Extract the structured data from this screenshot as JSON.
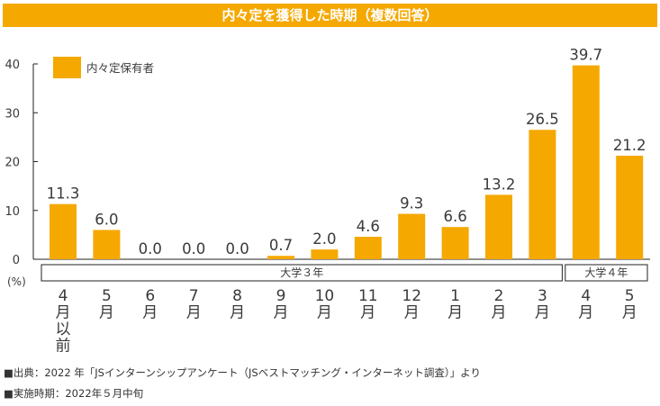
{
  "title": "内々定を獲得した時期（複数回答）",
  "chart_data": {
    "type": "bar",
    "title": "内々定を獲得した時期（複数回答）",
    "ylabel": "(%)",
    "ylim": [
      0,
      40
    ],
    "yticks": [
      0,
      10,
      20,
      30,
      40
    ],
    "legend": {
      "label": "内々定保有者",
      "position": "top-left"
    },
    "bar_color": "#f5a800",
    "categories": [
      [
        "4",
        "月",
        "以",
        "前"
      ],
      [
        "5",
        "月"
      ],
      [
        "6",
        "月"
      ],
      [
        "7",
        "月"
      ],
      [
        "8",
        "月"
      ],
      [
        "9",
        "月"
      ],
      [
        "10",
        "月"
      ],
      [
        "11",
        "月"
      ],
      [
        "12",
        "月"
      ],
      [
        "1",
        "月"
      ],
      [
        "2",
        "月"
      ],
      [
        "3",
        "月"
      ],
      [
        "4",
        "月"
      ],
      [
        "5",
        "月"
      ]
    ],
    "series": [
      {
        "name": "内々定保有者",
        "values": [
          11.3,
          6.0,
          0.0,
          0.0,
          0.0,
          0.7,
          2.0,
          4.6,
          9.3,
          6.6,
          13.2,
          26.5,
          39.7,
          21.2
        ],
        "labels": [
          "11.3",
          "6.0",
          "0.0",
          "0.0",
          "0.0",
          "0.7",
          "2.0",
          "4.6",
          "9.3",
          "6.6",
          "13.2",
          "26.5",
          "39.7",
          "21.2"
        ]
      }
    ],
    "groups": [
      {
        "label": "大学３年",
        "from": 0,
        "to": 11
      },
      {
        "label": "大学４年",
        "from": 12,
        "to": 13
      }
    ]
  },
  "footnotes": [
    "■出典：2022 年「JSインターンシップアンケート（JSベストマッチング・インターネット調査）」より",
    "■実施時期：2022年５月中旬"
  ]
}
